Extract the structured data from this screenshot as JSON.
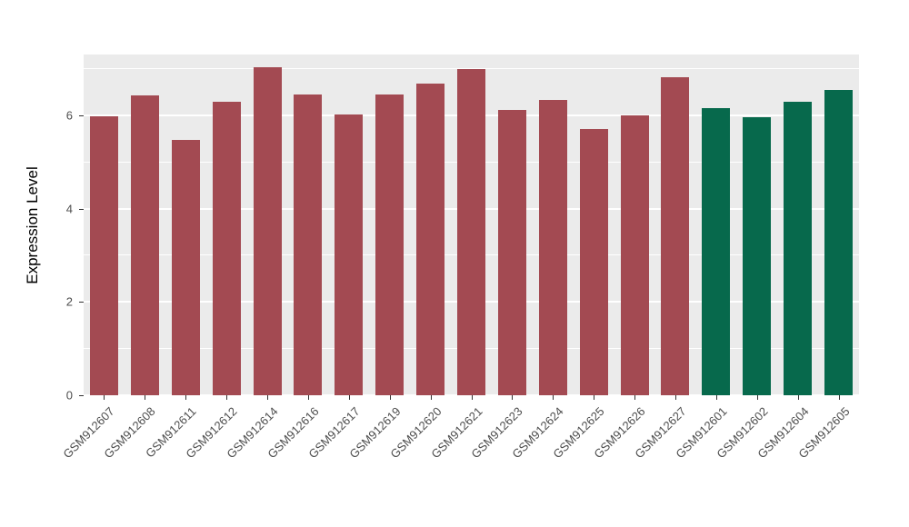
{
  "chart_data": {
    "type": "bar",
    "title": "",
    "xlabel": "",
    "ylabel": "Expression Level",
    "ylim": [
      0,
      7.3
    ],
    "yticks": [
      0,
      2,
      4,
      6
    ],
    "yticks_minor": [
      1,
      3,
      5,
      7
    ],
    "grid": "on",
    "legend": "none",
    "panel_background": "#EBEBEB",
    "grid_color": "#FFFFFF",
    "categories": [
      "GSM912607",
      "GSM912608",
      "GSM912611",
      "GSM912612",
      "GSM912614",
      "GSM912616",
      "GSM912617",
      "GSM912619",
      "GSM912620",
      "GSM912621",
      "GSM912623",
      "GSM912624",
      "GSM912625",
      "GSM912626",
      "GSM912627",
      "GSM912601",
      "GSM912602",
      "GSM912604",
      "GSM912605"
    ],
    "values": [
      5.97,
      6.42,
      5.47,
      6.28,
      7.03,
      6.44,
      6.01,
      6.44,
      6.68,
      6.98,
      6.12,
      6.32,
      5.71,
      6.0,
      6.82,
      6.15,
      5.95,
      6.28,
      6.55
    ],
    "groups": [
      "red",
      "red",
      "red",
      "red",
      "red",
      "red",
      "red",
      "red",
      "red",
      "red",
      "red",
      "red",
      "red",
      "red",
      "red",
      "green",
      "green",
      "green",
      "green"
    ],
    "group_colors": {
      "red": "#A34A52",
      "green": "#07694C"
    }
  },
  "layout_labels": {
    "y_axis_title": "Expression Level"
  }
}
